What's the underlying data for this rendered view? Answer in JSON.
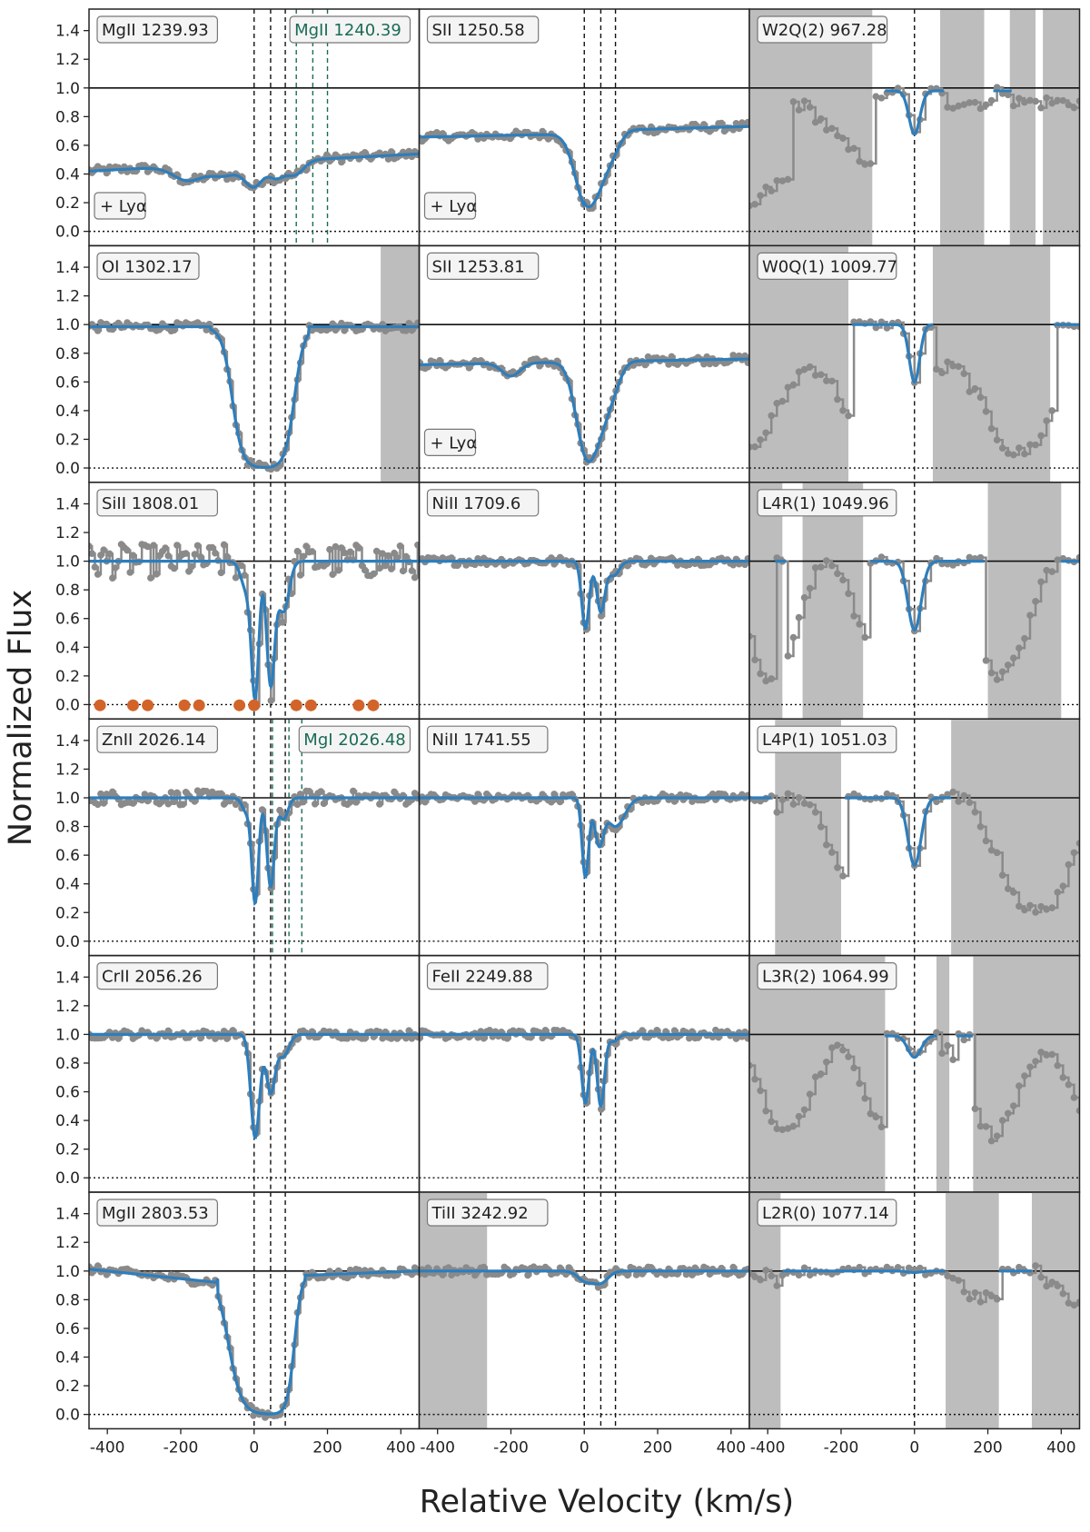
{
  "chart_data": {
    "type": "line",
    "xlabel": "Relative Velocity (km/s)",
    "ylabel": "Normalized Flux",
    "xlim": [
      -450,
      450
    ],
    "ylim": [
      -0.1,
      1.55
    ],
    "x_ticks": [
      "-400",
      "-200",
      "0",
      "200",
      "400"
    ],
    "y_ticks": [
      "0.0",
      "0.2",
      "0.4",
      "0.6",
      "0.8",
      "1.0",
      "1.2",
      "1.4"
    ],
    "x_tick_values": [
      -400,
      -200,
      0,
      200,
      400
    ],
    "y_tick_values": [
      0,
      0.2,
      0.4,
      0.6,
      0.8,
      1.0,
      1.2,
      1.4
    ],
    "component_velocities": [
      0,
      45,
      85
    ],
    "colors": {
      "data": "#8a8a8a",
      "model": "#2e7ebc",
      "mask": "#bdbdbd",
      "green": "#1a6b55",
      "marker": "#d2642a"
    },
    "panels": [
      {
        "label": "MgII 1239.93",
        "annotation": "+ Lyα",
        "extra_label": "MgII 1240.39",
        "components": [
          0,
          45,
          85
        ],
        "extra_components": [
          115,
          160,
          200
        ],
        "masks": [],
        "model": "metal",
        "shape": "mg1239"
      },
      {
        "label": "SII 1250.58",
        "annotation": "+ Lyα",
        "components": [
          0,
          45,
          85
        ],
        "masks": [],
        "model": "metal",
        "shape": "sii1250"
      },
      {
        "label": "W2Q(2) 967.28",
        "components": [
          0
        ],
        "masks": [
          [
            -450,
            -115
          ],
          [
            70,
            190
          ],
          [
            260,
            330
          ],
          [
            350,
            450
          ]
        ],
        "model": "h2",
        "shape": "w2q"
      },
      {
        "label": "OI 1302.17",
        "components": [
          0,
          45,
          85
        ],
        "masks": [
          [
            345,
            450
          ]
        ],
        "model": "metal",
        "shape": "oi"
      },
      {
        "label": "SII 1253.81",
        "annotation": "+ Lyα",
        "components": [
          0,
          45,
          85
        ],
        "masks": [],
        "model": "metal",
        "shape": "sii1253"
      },
      {
        "label": "W0Q(1) 1009.77",
        "components": [
          0
        ],
        "masks": [
          [
            -450,
            -180
          ],
          [
            50,
            370
          ]
        ],
        "model": "h2",
        "shape": "w0q"
      },
      {
        "label": "SiII 1808.01",
        "components": [
          0,
          45,
          85
        ],
        "masks": [],
        "model": "metal",
        "shape": "siii",
        "markers": [
          -420,
          -330,
          -290,
          -190,
          -150,
          -40,
          0,
          115,
          155,
          285,
          325
        ]
      },
      {
        "label": "NiII 1709.6",
        "components": [
          0,
          45,
          85
        ],
        "masks": [],
        "model": "metal",
        "shape": "nii1709"
      },
      {
        "label": "L4R(1) 1049.96",
        "components": [
          0
        ],
        "masks": [
          [
            -450,
            -360
          ],
          [
            -305,
            -140
          ],
          [
            200,
            400
          ]
        ],
        "model": "h2",
        "shape": "l4r"
      },
      {
        "label": "ZnII 2026.14",
        "extra_label": "MgI 2026.48",
        "components": [
          0,
          45,
          85
        ],
        "extra_components": [
          50,
          95,
          130
        ],
        "masks": [],
        "model": "metal",
        "shape": "znii"
      },
      {
        "label": "NiII 1741.55",
        "components": [
          0,
          45,
          85
        ],
        "masks": [],
        "model": "metal",
        "shape": "nii1741"
      },
      {
        "label": "L4P(1) 1051.03",
        "components": [
          0
        ],
        "masks": [
          [
            -380,
            -200
          ],
          [
            100,
            450
          ]
        ],
        "model": "h2",
        "shape": "l4p"
      },
      {
        "label": "CrII 2056.26",
        "components": [
          0,
          45,
          85
        ],
        "masks": [],
        "model": "metal",
        "shape": "crii"
      },
      {
        "label": "FeII 2249.88",
        "components": [
          0,
          45,
          85
        ],
        "masks": [],
        "model": "metal",
        "shape": "feii"
      },
      {
        "label": "L3R(2) 1064.99",
        "components": [
          0
        ],
        "masks": [
          [
            -450,
            -80
          ],
          [
            60,
            95
          ],
          [
            160,
            450
          ]
        ],
        "model": "h2",
        "shape": "l3r"
      },
      {
        "label": "MgII 2803.53",
        "components": [
          0,
          45,
          85
        ],
        "masks": [],
        "model": "metal",
        "shape": "mgii2803"
      },
      {
        "label": "TiII 3242.92",
        "components": [
          0,
          45,
          85
        ],
        "masks": [
          [
            -450,
            -265
          ]
        ],
        "model": "metal",
        "shape": "tiii"
      },
      {
        "label": "L2R(0) 1077.14",
        "components": [
          0
        ],
        "masks": [
          [
            -450,
            -365
          ],
          [
            85,
            230
          ],
          [
            320,
            450
          ]
        ],
        "model": "h2",
        "shape": "l2r"
      }
    ]
  }
}
